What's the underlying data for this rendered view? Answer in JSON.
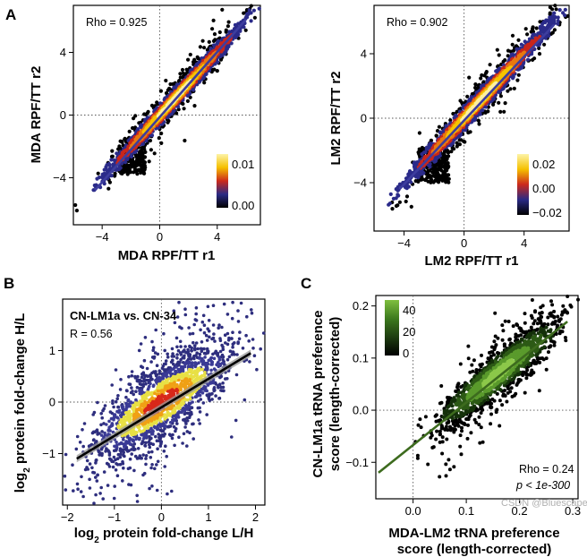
{
  "watermark": "CSDN @Bluescape",
  "chart_data": [
    {
      "type": "scatter",
      "panel": "A",
      "xlabel": "MDA RPF/TT r1",
      "ylabel": "MDA RPF/TT r2",
      "xlim": [
        -6,
        7
      ],
      "ylim": [
        -7,
        7
      ],
      "xticks": [
        -4,
        0,
        4
      ],
      "yticks": [
        -4,
        0,
        4
      ],
      "tick_labels_x": [
        "−4",
        "0",
        "4"
      ],
      "tick_labels_y": [
        "−4",
        "0",
        "4"
      ],
      "annotation": "Rho = 0.925",
      "fit_line": {
        "x": [
          -4.5,
          6.0
        ],
        "y": [
          -4.8,
          6.1
        ],
        "color": "#3d3d9e"
      },
      "reference_lines": {
        "x": 0,
        "y": 0,
        "style": "dotted"
      },
      "density_legend": {
        "labels": [
          "0.01",
          "0.00"
        ],
        "colors": [
          "#000000",
          "#2a2a85",
          "#cc2a1c",
          "#f5c000",
          "#fdf3a8"
        ]
      },
      "cloud": {
        "slope": 1.0,
        "intercept": 0.0,
        "spread": 0.55,
        "x_range": [
          -4,
          6
        ],
        "outlier_region_x": [
          -2.8,
          -1.0
        ],
        "outlier_region_y": [
          -3.8,
          -1.5
        ]
      }
    },
    {
      "type": "scatter",
      "panel": "A-right",
      "xlabel": "LM2 RPF/TT r1",
      "ylabel": "LM2 RPF/TT r2",
      "xlim": [
        -6,
        7
      ],
      "ylim": [
        -7,
        7
      ],
      "xticks": [
        -4,
        0,
        4
      ],
      "yticks": [
        -4,
        0,
        4
      ],
      "tick_labels_x": [
        "−4",
        "0",
        "4"
      ],
      "tick_labels_y": [
        "−4",
        "0",
        "4"
      ],
      "annotation": "Rho = 0.902",
      "fit_line": {
        "x": [
          -4.3,
          6.0
        ],
        "y": [
          -4.4,
          5.8
        ],
        "color": "#3d3d9e"
      },
      "reference_lines": {
        "x": 0,
        "y": 0,
        "style": "dotted"
      },
      "density_legend": {
        "labels": [
          "0.02",
          "0.00",
          "−0.02"
        ],
        "colors": [
          "#000000",
          "#2a2a85",
          "#cc2a1c",
          "#f5c000",
          "#fdf3a8"
        ]
      },
      "cloud": {
        "slope": 1.0,
        "intercept": 0.0,
        "spread": 0.6,
        "x_range": [
          -4,
          6
        ],
        "outlier_region_x": [
          -3.0,
          -1.0
        ],
        "outlier_region_y": [
          -4.0,
          -1.8
        ]
      }
    },
    {
      "type": "scatter",
      "panel": "B",
      "xlabel": "log2 protein fold-change L/H",
      "ylabel": "log2 protein fold-change H/L",
      "xlim": [
        -2.1,
        2.2
      ],
      "ylim": [
        -2.0,
        2.0
      ],
      "xticks": [
        -2,
        -1,
        0,
        1,
        2
      ],
      "yticks": [
        -1,
        0,
        1
      ],
      "tick_labels_x": [
        "−2",
        "−1",
        "0",
        "1",
        "2"
      ],
      "tick_labels_y": [
        "−1",
        "0",
        "1"
      ],
      "annotations": [
        "CN-LM1a vs. CN-34",
        "R = 0.56"
      ],
      "fit_line": {
        "x": [
          -1.8,
          1.9
        ],
        "y": [
          -1.1,
          0.95
        ],
        "color": "#000000",
        "band": true
      },
      "reference_lines": {
        "x": 0,
        "y": 0,
        "style": "dotted"
      },
      "cloud": {
        "slope": 0.5,
        "intercept": 0.0,
        "spread": 0.45,
        "x_range": [
          -1.5,
          1.5
        ]
      }
    },
    {
      "type": "scatter",
      "panel": "C",
      "xlabel": "MDA-LM2 tRNA preference score (length-corrected)",
      "xlabel_lines": [
        "MDA-LM2 tRNA preference",
        "score (length-corrected)"
      ],
      "ylabel": "CN-LM1a tRNA preference score (length-corrected)",
      "ylabel_lines": [
        "CN-LM1a tRNA preference",
        "score (length-corrected)"
      ],
      "xlim": [
        -0.07,
        0.31
      ],
      "ylim": [
        -0.17,
        0.22
      ],
      "xticks": [
        0.0,
        0.1,
        0.2,
        0.3
      ],
      "yticks": [
        -0.1,
        0.0,
        0.1,
        0.2
      ],
      "tick_labels_x": [
        "0.0",
        "0.1",
        "0.2",
        "0.3"
      ],
      "tick_labels_y": [
        "−0.1",
        "0.0",
        "0.1",
        "0.2"
      ],
      "annotations": [
        "Rho = 0.24",
        "p < 1e-300"
      ],
      "fit_line": {
        "x": [
          -0.065,
          0.29
        ],
        "y": [
          -0.12,
          0.17
        ],
        "color": "#3d6b1e"
      },
      "reference_lines": {
        "x": 0,
        "y": 0,
        "style": "dotted"
      },
      "density_legend": {
        "labels": [
          "40",
          "20",
          "0"
        ],
        "colors": [
          "#000000",
          "#1e3d10",
          "#3d7a1e",
          "#7fbf3f"
        ]
      },
      "cloud": {
        "slope": 0.75,
        "intercept": -0.05,
        "spread": 0.03,
        "x_range": [
          0.05,
          0.27
        ]
      }
    }
  ]
}
